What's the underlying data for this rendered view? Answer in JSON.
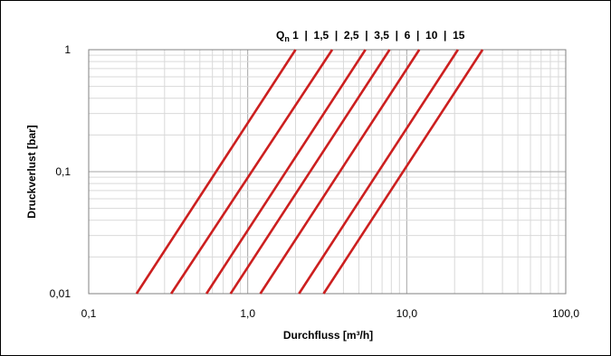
{
  "chart_data": {
    "type": "line",
    "xlabel": "Durchfluss [m³/h]",
    "ylabel": "Druckverlust [bar]",
    "x_scale": "log",
    "y_scale": "log",
    "xlim": [
      0.1,
      100
    ],
    "ylim": [
      0.01,
      1
    ],
    "x_ticks": [
      {
        "value": 0.1,
        "label": "0,1"
      },
      {
        "value": 1,
        "label": "1,0"
      },
      {
        "value": 10,
        "label": "10,0"
      },
      {
        "value": 100,
        "label": "100,0"
      }
    ],
    "y_ticks": [
      {
        "value": 0.01,
        "label": "0,01"
      },
      {
        "value": 0.1,
        "label": "0,1"
      },
      {
        "value": 1,
        "label": "1"
      }
    ],
    "grid": true,
    "legend": {
      "prefix": "Q",
      "subscript": "n",
      "text": " 1  |  1,5  |  2,5  |  3,5  |  6  |  10  |  15",
      "placement": "top-right"
    },
    "line_color": "#cc1f1f",
    "series": [
      {
        "x": [
          0.2,
          2.0
        ],
        "y": [
          0.01,
          1
        ]
      },
      {
        "x": [
          0.33,
          3.4
        ],
        "y": [
          0.01,
          1
        ]
      },
      {
        "x": [
          0.55,
          5.5
        ],
        "y": [
          0.01,
          1
        ]
      },
      {
        "x": [
          0.78,
          7.8
        ],
        "y": [
          0.01,
          1
        ]
      },
      {
        "x": [
          1.2,
          12.0
        ],
        "y": [
          0.01,
          1
        ]
      },
      {
        "x": [
          2.1,
          21.0
        ],
        "y": [
          0.01,
          1
        ]
      },
      {
        "x": [
          3.0,
          30.0
        ],
        "y": [
          0.01,
          1
        ]
      }
    ]
  }
}
